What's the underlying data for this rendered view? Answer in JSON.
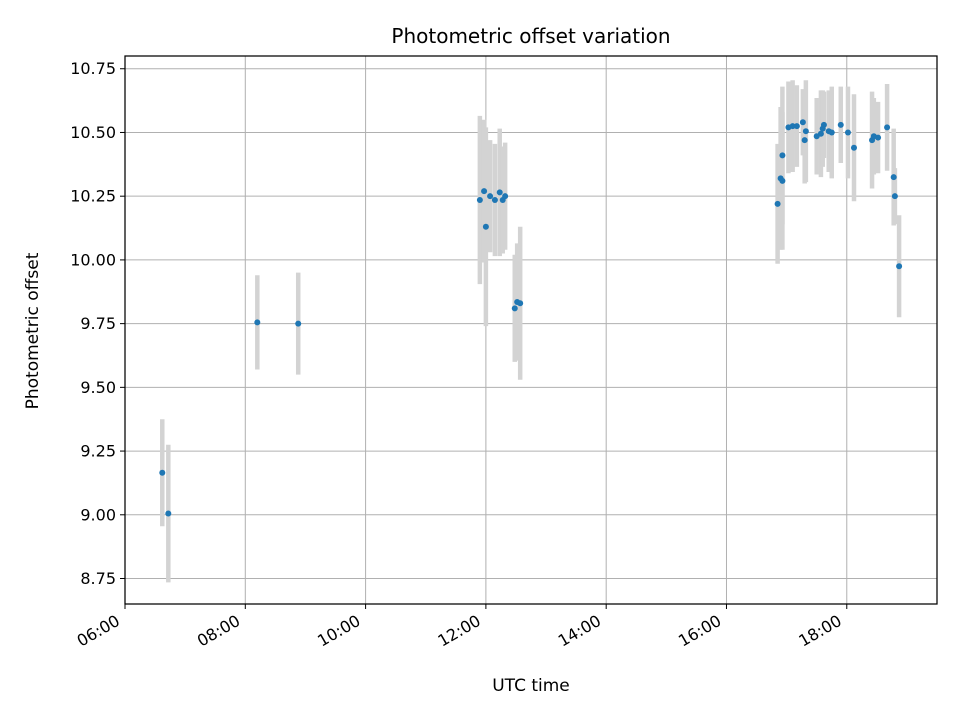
{
  "chart_data": {
    "type": "scatter",
    "title": "Photometric offset variation",
    "xlabel": "UTC time",
    "ylabel": "Photometric offset",
    "x_unit": "hours (UTC)",
    "xlim": [
      6.0,
      19.5
    ],
    "ylim": [
      8.65,
      10.8
    ],
    "x_ticks": [
      6,
      8,
      10,
      12,
      14,
      16,
      18
    ],
    "x_tick_labels": [
      "06:00",
      "08:00",
      "10:00",
      "12:00",
      "14:00",
      "16:00",
      "18:00"
    ],
    "y_ticks": [
      8.75,
      9.0,
      9.25,
      9.5,
      9.75,
      10.0,
      10.25,
      10.5,
      10.75
    ],
    "y_tick_labels": [
      "8.75",
      "9.00",
      "9.25",
      "9.50",
      "9.75",
      "10.00",
      "10.25",
      "10.50",
      "10.75"
    ],
    "grid": true,
    "colors": {
      "points": "#1f77b4",
      "errorbars": "#d3d3d3",
      "grid": "#b0b0b0"
    },
    "points": [
      {
        "x": 6.62,
        "y": 9.165,
        "err": 0.21
      },
      {
        "x": 6.72,
        "y": 9.005,
        "err": 0.27
      },
      {
        "x": 8.2,
        "y": 9.755,
        "err": 0.185
      },
      {
        "x": 8.88,
        "y": 9.75,
        "err": 0.2
      },
      {
        "x": 11.9,
        "y": 10.235,
        "err": 0.33
      },
      {
        "x": 11.97,
        "y": 10.27,
        "err": 0.28
      },
      {
        "x": 12.0,
        "y": 10.13,
        "err": 0.39
      },
      {
        "x": 12.07,
        "y": 10.25,
        "err": 0.22
      },
      {
        "x": 12.15,
        "y": 10.235,
        "err": 0.22
      },
      {
        "x": 12.23,
        "y": 10.265,
        "err": 0.25
      },
      {
        "x": 12.28,
        "y": 10.235,
        "err": 0.21
      },
      {
        "x": 12.32,
        "y": 10.25,
        "err": 0.21
      },
      {
        "x": 12.48,
        "y": 9.81,
        "err": 0.21
      },
      {
        "x": 12.52,
        "y": 9.835,
        "err": 0.23
      },
      {
        "x": 12.57,
        "y": 9.83,
        "err": 0.3
      },
      {
        "x": 16.85,
        "y": 10.22,
        "err": 0.235
      },
      {
        "x": 16.9,
        "y": 10.32,
        "err": 0.28
      },
      {
        "x": 16.93,
        "y": 10.41,
        "err": 0.27
      },
      {
        "x": 16.93,
        "y": 10.31,
        "err": 0.27
      },
      {
        "x": 17.03,
        "y": 10.52,
        "err": 0.18
      },
      {
        "x": 17.1,
        "y": 10.525,
        "err": 0.18
      },
      {
        "x": 17.17,
        "y": 10.525,
        "err": 0.16
      },
      {
        "x": 17.27,
        "y": 10.54,
        "err": 0.13
      },
      {
        "x": 17.3,
        "y": 10.47,
        "err": 0.17
      },
      {
        "x": 17.32,
        "y": 10.505,
        "err": 0.2
      },
      {
        "x": 17.5,
        "y": 10.485,
        "err": 0.15
      },
      {
        "x": 17.57,
        "y": 10.495,
        "err": 0.17
      },
      {
        "x": 17.6,
        "y": 10.515,
        "err": 0.15
      },
      {
        "x": 17.62,
        "y": 10.53,
        "err": 0.13
      },
      {
        "x": 17.7,
        "y": 10.505,
        "err": 0.16
      },
      {
        "x": 17.75,
        "y": 10.5,
        "err": 0.18
      },
      {
        "x": 17.9,
        "y": 10.53,
        "err": 0.15
      },
      {
        "x": 18.02,
        "y": 10.5,
        "err": 0.18
      },
      {
        "x": 18.12,
        "y": 10.44,
        "err": 0.21
      },
      {
        "x": 18.42,
        "y": 10.47,
        "err": 0.19
      },
      {
        "x": 18.45,
        "y": 10.485,
        "err": 0.15
      },
      {
        "x": 18.52,
        "y": 10.48,
        "err": 0.14
      },
      {
        "x": 18.67,
        "y": 10.52,
        "err": 0.17
      },
      {
        "x": 18.78,
        "y": 10.325,
        "err": 0.19
      },
      {
        "x": 18.8,
        "y": 10.25,
        "err": 0.11
      },
      {
        "x": 18.87,
        "y": 9.975,
        "err": 0.2
      }
    ]
  }
}
